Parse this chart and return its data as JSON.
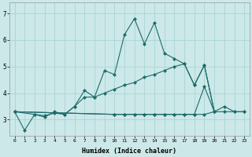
{
  "xlabel": "Humidex (Indice chaleur)",
  "bg_color": "#cce8e8",
  "line_color": "#1e6b6b",
  "grid_color": "#aad4d4",
  "x_values": [
    0,
    1,
    2,
    3,
    4,
    5,
    6,
    7,
    8,
    9,
    10,
    11,
    12,
    13,
    14,
    15,
    16,
    17,
    18,
    19,
    20,
    21,
    22,
    23
  ],
  "line1": [
    3.3,
    2.6,
    3.2,
    3.15,
    3.25,
    3.2,
    3.5,
    4.1,
    3.85,
    4.85,
    4.7,
    6.2,
    6.8,
    5.85,
    6.65,
    5.5,
    5.3,
    5.1,
    4.3,
    5.05,
    3.3,
    null,
    null,
    null
  ],
  "line2": [
    3.3,
    null,
    3.2,
    3.1,
    3.3,
    3.2,
    3.5,
    3.85,
    3.85,
    4.0,
    4.15,
    4.3,
    4.4,
    4.6,
    4.7,
    4.85,
    5.0,
    5.1,
    4.3,
    5.05,
    3.3,
    null,
    null,
    null
  ],
  "line3": [
    3.3,
    null,
    null,
    null,
    null,
    null,
    null,
    null,
    null,
    null,
    3.2,
    3.2,
    3.2,
    3.2,
    3.2,
    3.2,
    3.2,
    3.2,
    3.2,
    3.2,
    3.3,
    3.3,
    3.3,
    3.3
  ],
  "line4": [
    3.3,
    null,
    null,
    null,
    null,
    null,
    null,
    null,
    null,
    null,
    3.2,
    3.2,
    3.2,
    3.2,
    3.2,
    3.2,
    3.2,
    3.2,
    3.2,
    4.25,
    3.3,
    3.5,
    3.3,
    3.3
  ],
  "ylim": [
    2.4,
    7.4
  ],
  "xlim": [
    -0.5,
    23.5
  ],
  "yticks": [
    3,
    4,
    5,
    6,
    7
  ],
  "xticks": [
    0,
    1,
    2,
    3,
    4,
    5,
    6,
    7,
    8,
    9,
    10,
    11,
    12,
    13,
    14,
    15,
    16,
    17,
    18,
    19,
    20,
    21,
    22,
    23
  ],
  "xtick_labels": [
    "0",
    "1",
    "2",
    "3",
    "4",
    "5",
    "6",
    "7",
    "8",
    "9",
    "10",
    "11",
    "12",
    "13",
    "14",
    "15",
    "16",
    "17",
    "18",
    "19",
    "20",
    "21",
    "22",
    "23"
  ]
}
